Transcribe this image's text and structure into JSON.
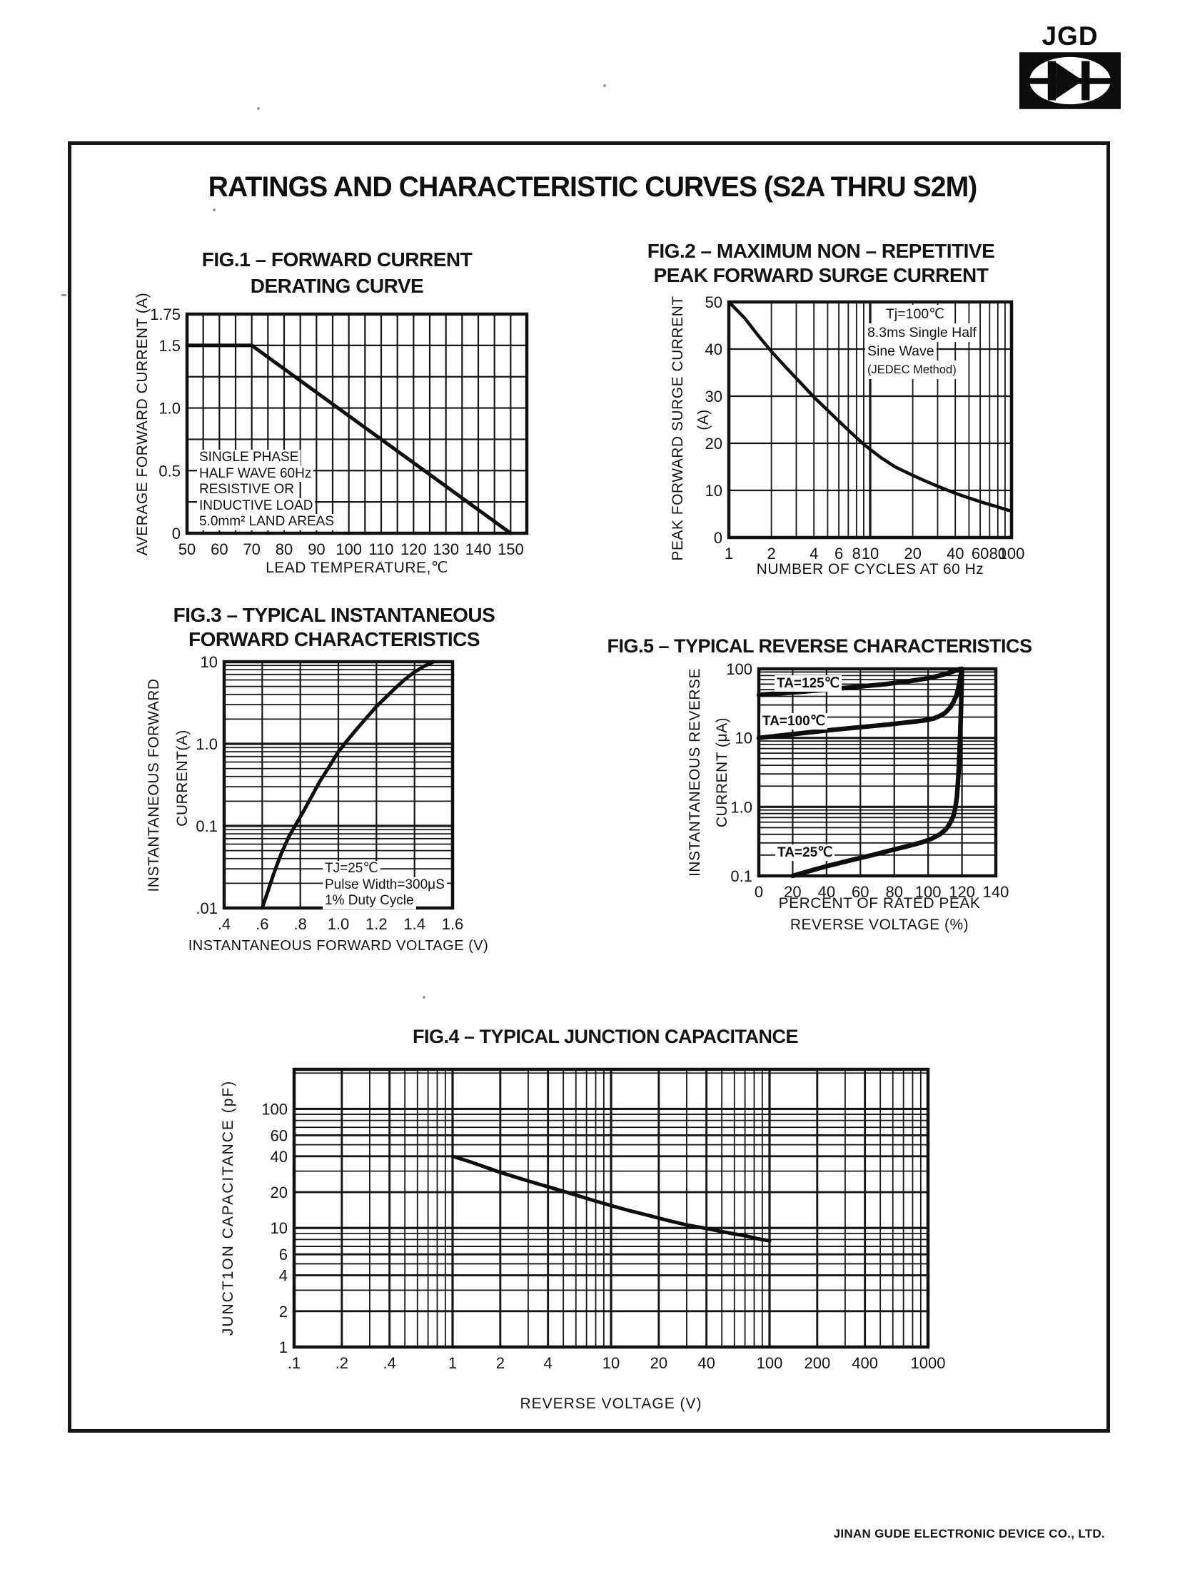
{
  "page": {
    "logo_text": "JGD",
    "title": "RATINGS AND CHARACTERISTIC CURVES (S2A THRU S2M)",
    "footer": "JINAN GUDE ELECTRONIC DEVICE CO., LTD."
  },
  "chart_data": [
    {
      "id": "fig1",
      "type": "line",
      "title_lines": [
        "FIG.1 – FORWARD CURRENT",
        "DERATING CURVE"
      ],
      "x": {
        "scale": "linear",
        "min": 50,
        "max": 155,
        "step": 5,
        "label": "LEAD TEMPERATURE,℃",
        "ticks": [
          {
            "v": 50,
            "t": "50"
          },
          {
            "v": 60,
            "t": "60"
          },
          {
            "v": 70,
            "t": "70"
          },
          {
            "v": 80,
            "t": "80"
          },
          {
            "v": 90,
            "t": "90"
          },
          {
            "v": 100,
            "t": "100"
          },
          {
            "v": 110,
            "t": "110"
          },
          {
            "v": 120,
            "t": "120"
          },
          {
            "v": 130,
            "t": "130"
          },
          {
            "v": 140,
            "t": "140"
          },
          {
            "v": 150,
            "t": "150"
          }
        ]
      },
      "y": {
        "scale": "linear",
        "min": 0,
        "max": 1.75,
        "step": 0.25,
        "label": "AVERAGE FORWARD CURRENT (A)",
        "ticks": [
          {
            "v": 0,
            "t": "0"
          },
          {
            "v": 0.5,
            "t": "0.5"
          },
          {
            "v": 1.0,
            "t": "1.0"
          },
          {
            "v": 1.5,
            "t": "1.5"
          },
          {
            "v": 1.75,
            "t": "1.75"
          }
        ]
      },
      "series": [
        {
          "name": "derating-curve",
          "points": [
            [
              50,
              1.5
            ],
            [
              70,
              1.5
            ],
            [
              150,
              0
            ]
          ]
        }
      ],
      "annotation": [
        "SINGLE PHASE",
        "HALF WAVE 60Hz",
        "RESISTIVE OR",
        "INDUCTIVE LOAD",
        "5.0mm² LAND AREAS"
      ]
    },
    {
      "id": "fig2",
      "type": "line",
      "title_lines": [
        "FIG.2 – MAXIMUM NON – REPETITIVE",
        "PEAK FORWARD SURGE CURRENT"
      ],
      "x": {
        "scale": "log",
        "min": 1,
        "max": 100,
        "label": "NUMBER OF CYCLES AT 60 Hz",
        "ticks": [
          {
            "v": 1,
            "t": "1"
          },
          {
            "v": 2,
            "t": "2"
          },
          {
            "v": 4,
            "t": "4"
          },
          {
            "v": 6,
            "t": "6"
          },
          {
            "v": 8,
            "t": "8"
          },
          {
            "v": 10,
            "t": "10"
          },
          {
            "v": 20,
            "t": "20"
          },
          {
            "v": 40,
            "t": "40"
          },
          {
            "v": 60,
            "t": "60"
          },
          {
            "v": 80,
            "t": "80"
          },
          {
            "v": 100,
            "t": "100"
          }
        ]
      },
      "y": {
        "scale": "linear",
        "min": 0,
        "max": 50,
        "step": 10,
        "label_lines": [
          "PEAK FORWARD SURGE CURRENT",
          "(A)"
        ],
        "ticks": [
          {
            "v": 0,
            "t": "0"
          },
          {
            "v": 10,
            "t": "10"
          },
          {
            "v": 20,
            "t": "20"
          },
          {
            "v": 30,
            "t": "30"
          },
          {
            "v": 40,
            "t": "40"
          },
          {
            "v": 50,
            "t": "50"
          }
        ]
      },
      "series": [
        {
          "name": "surge-current",
          "points": [
            [
              1,
              50
            ],
            [
              1.3,
              46.5
            ],
            [
              1.6,
              43
            ],
            [
              2,
              39.5
            ],
            [
              2.5,
              36.3
            ],
            [
              3,
              33.8
            ],
            [
              4,
              29.8
            ],
            [
              5,
              27
            ],
            [
              6,
              24.7
            ],
            [
              7,
              22.8
            ],
            [
              8,
              21.2
            ],
            [
              9,
              19.8
            ],
            [
              10,
              18.7
            ],
            [
              12,
              16.9
            ],
            [
              15,
              15
            ],
            [
              20,
              13.2
            ],
            [
              25,
              11.9
            ],
            [
              30,
              10.9
            ],
            [
              40,
              9.4
            ],
            [
              50,
              8.4
            ],
            [
              60,
              7.6
            ],
            [
              70,
              7
            ],
            [
              80,
              6.5
            ],
            [
              90,
              6
            ],
            [
              100,
              5.6
            ]
          ]
        }
      ],
      "annotation": [
        "Tj=100℃",
        "8.3ms Single Half",
        "Sine Wave",
        "(JEDEC Method)"
      ]
    },
    {
      "id": "fig3",
      "type": "line",
      "title_lines": [
        "FIG.3 – TYPICAL INSTANTANEOUS",
        "FORWARD CHARACTERISTICS"
      ],
      "x": {
        "scale": "linear",
        "min": 0.4,
        "max": 1.6,
        "step": 0.2,
        "label": "INSTANTANEOUS FORWARD VOLTAGE (V)",
        "ticks": [
          {
            "v": 0.4,
            "t": ".4"
          },
          {
            "v": 0.6,
            "t": ".6"
          },
          {
            "v": 0.8,
            "t": ".8"
          },
          {
            "v": 1.0,
            "t": "1.0"
          },
          {
            "v": 1.2,
            "t": "1.2"
          },
          {
            "v": 1.4,
            "t": "1.4"
          },
          {
            "v": 1.6,
            "t": "1.6"
          }
        ]
      },
      "y": {
        "scale": "log",
        "min": 0.01,
        "max": 10,
        "label_lines": [
          "INSTANTANEOUS FORWARD",
          "CURRENT(A)"
        ],
        "ticks": [
          {
            "v": 10,
            "t": "10"
          },
          {
            "v": 1,
            "t": "1.0"
          },
          {
            "v": 0.1,
            "t": "0.1"
          },
          {
            "v": 0.01,
            "t": ".01"
          }
        ]
      },
      "series": [
        {
          "name": "forward-voltage-current",
          "points": [
            [
              0.6,
              0.01
            ],
            [
              0.63,
              0.016
            ],
            [
              0.66,
              0.026
            ],
            [
              0.7,
              0.046
            ],
            [
              0.74,
              0.074
            ],
            [
              0.78,
              0.107
            ],
            [
              0.82,
              0.155
            ],
            [
              0.86,
              0.23
            ],
            [
              0.9,
              0.34
            ],
            [
              0.95,
              0.52
            ],
            [
              1.0,
              0.8
            ],
            [
              1.05,
              1.12
            ],
            [
              1.1,
              1.55
            ],
            [
              1.15,
              2.1
            ],
            [
              1.2,
              2.85
            ],
            [
              1.25,
              3.7
            ],
            [
              1.3,
              4.8
            ],
            [
              1.35,
              6.1
            ],
            [
              1.4,
              7.5
            ],
            [
              1.45,
              8.8
            ],
            [
              1.5,
              10
            ]
          ]
        }
      ],
      "annotation": [
        "TJ=25℃",
        "Pulse Width=300μS",
        "1% Duty Cycle"
      ]
    },
    {
      "id": "fig5",
      "type": "line",
      "title_lines": [
        "FIG.5 – TYPICAL REVERSE CHARACTERISTICS"
      ],
      "x": {
        "scale": "linear",
        "min": 0,
        "max": 140,
        "step": 20,
        "label_lines": [
          "PERCENT OF RATED PEAK",
          "REVERSE VOLTAGE (%)"
        ],
        "ticks": [
          {
            "v": 0,
            "t": "0"
          },
          {
            "v": 20,
            "t": "20"
          },
          {
            "v": 40,
            "t": "40"
          },
          {
            "v": 60,
            "t": "60"
          },
          {
            "v": 80,
            "t": "80"
          },
          {
            "v": 100,
            "t": "100"
          },
          {
            "v": 120,
            "t": "120"
          },
          {
            "v": 140,
            "t": "140"
          }
        ]
      },
      "y": {
        "scale": "log",
        "min": 0.1,
        "max": 100,
        "label_lines": [
          "INSTANTANEOUS REVERSE",
          "CURRENT (μA)"
        ],
        "ticks": [
          {
            "v": 100,
            "t": "100"
          },
          {
            "v": 10,
            "t": "10"
          },
          {
            "v": 1,
            "t": "1.0"
          },
          {
            "v": 0.1,
            "t": "0.1"
          }
        ]
      },
      "series": [
        {
          "name": "ta-125",
          "label": "TA=125℃",
          "points": [
            [
              0,
              42
            ],
            [
              20,
              45.5
            ],
            [
              40,
              50
            ],
            [
              60,
              55.5
            ],
            [
              75,
              60
            ],
            [
              90,
              67
            ],
            [
              100,
              73
            ],
            [
              107,
              80
            ],
            [
              112,
              87
            ],
            [
              116,
              94
            ],
            [
              119,
              100
            ]
          ]
        },
        {
          "name": "ta-100",
          "label": "TA=100℃",
          "points": [
            [
              0,
              10
            ],
            [
              20,
              11.3
            ],
            [
              40,
              12.8
            ],
            [
              60,
              14.3
            ],
            [
              75,
              15.5
            ],
            [
              88,
              16.8
            ],
            [
              97,
              17.8
            ],
            [
              103,
              19
            ],
            [
              107,
              20.8
            ],
            [
              110,
              23
            ],
            [
              113,
              27.5
            ],
            [
              115,
              33
            ],
            [
              117,
              43
            ],
            [
              118,
              55
            ],
            [
              119,
              75
            ],
            [
              120,
              100
            ]
          ]
        },
        {
          "name": "ta-25",
          "label": "TA=25℃",
          "points": [
            [
              20,
              0.1
            ],
            [
              30,
              0.118
            ],
            [
              42,
              0.142
            ],
            [
              55,
              0.17
            ],
            [
              67,
              0.2
            ],
            [
              78,
              0.235
            ],
            [
              88,
              0.27
            ],
            [
              96,
              0.305
            ],
            [
              102,
              0.345
            ],
            [
              107,
              0.4
            ],
            [
              110,
              0.46
            ],
            [
              112,
              0.53
            ],
            [
              114,
              0.65
            ],
            [
              115,
              0.75
            ],
            [
              116,
              0.95
            ],
            [
              117,
              1.4
            ],
            [
              117.5,
              2
            ],
            [
              118,
              3.2
            ],
            [
              118.5,
              6
            ],
            [
              119,
              12
            ],
            [
              119.5,
              30
            ],
            [
              120,
              100
            ]
          ]
        }
      ]
    },
    {
      "id": "fig4",
      "type": "line",
      "title_lines": [
        "FIG.4 – TYPICAL JUNCTION CAPACITANCE"
      ],
      "x": {
        "scale": "log",
        "min": 0.1,
        "max": 1000,
        "label": "REVERSE VOLTAGE (V)",
        "emph": [
          0.2,
          0.4,
          2,
          4,
          20,
          40,
          200,
          400
        ],
        "ticks": [
          {
            "v": 0.1,
            "t": ".1"
          },
          {
            "v": 0.2,
            "t": ".2"
          },
          {
            "v": 0.4,
            "t": ".4"
          },
          {
            "v": 1,
            "t": "1"
          },
          {
            "v": 2,
            "t": "2"
          },
          {
            "v": 4,
            "t": "4"
          },
          {
            "v": 10,
            "t": "10"
          },
          {
            "v": 20,
            "t": "20"
          },
          {
            "v": 40,
            "t": "40"
          },
          {
            "v": 100,
            "t": "100"
          },
          {
            "v": 200,
            "t": "200"
          },
          {
            "v": 400,
            "t": "400"
          },
          {
            "v": 1000,
            "t": "1000"
          }
        ]
      },
      "y": {
        "scale": "log",
        "min": 1,
        "max": 215,
        "label": "JUNCT1ON CAPACITANCE (pF)",
        "emph": [
          2,
          4,
          6,
          20,
          40,
          60
        ],
        "ticks": [
          {
            "v": 100,
            "t": "100"
          },
          {
            "v": 60,
            "t": "60"
          },
          {
            "v": 40,
            "t": "40"
          },
          {
            "v": 20,
            "t": "20"
          },
          {
            "v": 10,
            "t": "10"
          },
          {
            "v": 6,
            "t": "6"
          },
          {
            "v": 4,
            "t": "4"
          },
          {
            "v": 2,
            "t": "2"
          },
          {
            "v": 1,
            "t": "1"
          }
        ]
      },
      "series": [
        {
          "name": "junction-capacitance",
          "points": [
            [
              1,
              40
            ],
            [
              1.3,
              35.8
            ],
            [
              1.7,
              31.6
            ],
            [
              2,
              29.3
            ],
            [
              2.6,
              26.3
            ],
            [
              3.4,
              23.6
            ],
            [
              4.5,
              21.2
            ],
            [
              6,
              18.9
            ],
            [
              8,
              16.8
            ],
            [
              10,
              15.4
            ],
            [
              13,
              14
            ],
            [
              17,
              12.8
            ],
            [
              22,
              11.7
            ],
            [
              30,
              10.6
            ],
            [
              40,
              9.9
            ],
            [
              55,
              9.1
            ],
            [
              70,
              8.6
            ],
            [
              85,
              8.1
            ],
            [
              100,
              7.8
            ]
          ]
        }
      ]
    }
  ]
}
